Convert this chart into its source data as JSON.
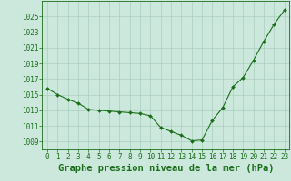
{
  "x": [
    0,
    1,
    2,
    3,
    4,
    5,
    6,
    7,
    8,
    9,
    10,
    11,
    12,
    13,
    14,
    15,
    16,
    17,
    18,
    19,
    20,
    21,
    22,
    23
  ],
  "y": [
    1015.8,
    1015.0,
    1014.4,
    1013.9,
    1013.1,
    1013.0,
    1012.9,
    1012.8,
    1012.7,
    1012.6,
    1012.3,
    1010.8,
    1010.3,
    1009.8,
    1009.1,
    1009.2,
    1011.7,
    1013.3,
    1016.0,
    1017.2,
    1019.4,
    1021.8,
    1024.0,
    1025.8
  ],
  "line_color": "#1a6e1a",
  "marker": "D",
  "marker_size": 2.0,
  "line_width": 0.8,
  "bg_color": "#cce8dc",
  "plot_bg_color": "#cce8dc",
  "grid_color": "#aacfbe",
  "ylabel_ticks": [
    1009,
    1011,
    1013,
    1015,
    1017,
    1019,
    1021,
    1023,
    1025
  ],
  "ylim": [
    1008.0,
    1027.0
  ],
  "xlim": [
    -0.5,
    23.5
  ],
  "xlabel": "Graphe pression niveau de la mer (hPa)",
  "xlabel_color": "#1a6e1a",
  "xlabel_fontsize": 7.5,
  "tick_color": "#1a6e1a",
  "tick_fontsize": 5.5,
  "spine_color": "#1a6e1a"
}
